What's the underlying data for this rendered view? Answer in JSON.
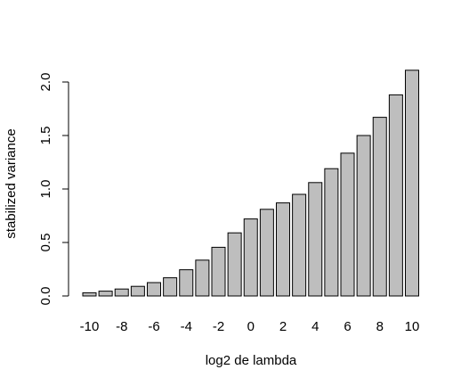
{
  "chart_data": {
    "type": "bar",
    "title": "",
    "xlabel": "log2 de lambda",
    "ylabel": "stabilized variance",
    "categories": [
      "-10",
      "-9",
      "-8",
      "-7",
      "-6",
      "-5",
      "-4",
      "-3",
      "-2",
      "-1",
      "0",
      "1",
      "2",
      "3",
      "4",
      "5",
      "6",
      "7",
      "8",
      "9",
      "10"
    ],
    "values": [
      0.03,
      0.045,
      0.065,
      0.09,
      0.125,
      0.17,
      0.245,
      0.335,
      0.455,
      0.59,
      0.72,
      0.81,
      0.87,
      0.95,
      1.06,
      1.19,
      1.335,
      1.5,
      1.67,
      1.88,
      2.11
    ],
    "x_tick_labels": [
      "-10",
      "-8",
      "-6",
      "-4",
      "-2",
      "0",
      "2",
      "4",
      "6",
      "8",
      "10"
    ],
    "y_ticks": [
      "0.0",
      "0.5",
      "1.0",
      "1.5",
      "2.0"
    ],
    "ylim": [
      0,
      2.2
    ],
    "grid": false,
    "legend": "none",
    "bar_color": "#bebebe",
    "edge_color": "#000000"
  }
}
